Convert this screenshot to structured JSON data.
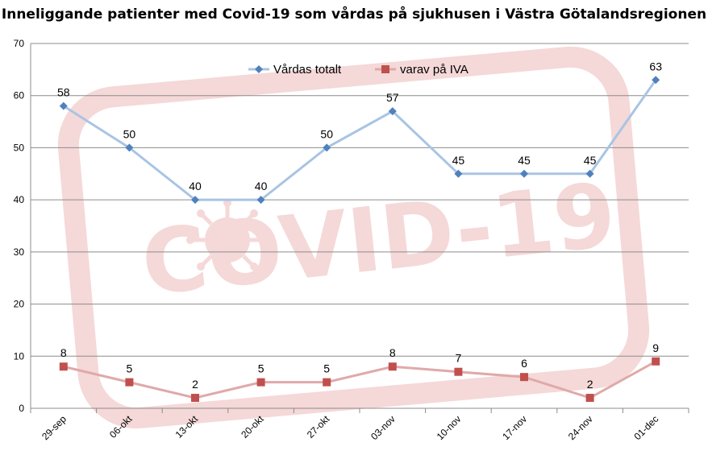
{
  "chart_data": {
    "type": "line",
    "title": "Inneliggande patienter med Covid-19 som vårdas på sjukhusen  i Västra Götalandsregionen",
    "categories": [
      "29-sep",
      "06-okt",
      "13-okt",
      "20-okt",
      "27-okt",
      "03-nov",
      "10-nov",
      "17-nov",
      "24-nov",
      "01-dec"
    ],
    "series": [
      {
        "name": "Vårdas totalt",
        "values": [
          58,
          50,
          40,
          40,
          50,
          57,
          45,
          45,
          45,
          63
        ],
        "line_color": "#A9C4E4",
        "marker_color": "#4F81BD",
        "marker": "diamond"
      },
      {
        "name": "varav på IVA",
        "values": [
          8,
          5,
          2,
          5,
          5,
          8,
          7,
          6,
          2,
          9
        ],
        "line_color": "#E0A9A9",
        "marker_color": "#C0504D",
        "marker": "square"
      }
    ],
    "ylim": [
      0,
      70
    ],
    "yticks": [
      0,
      10,
      20,
      30,
      40,
      50,
      60,
      70
    ],
    "grid": true,
    "legend_position": "top",
    "data_labels": true
  },
  "watermark": {
    "text": "COVID-19",
    "color": "#E8A0A0",
    "icon": "virus-icon"
  },
  "colors": {
    "gridline": "#8C8C8C",
    "axis": "#8C8C8C"
  }
}
